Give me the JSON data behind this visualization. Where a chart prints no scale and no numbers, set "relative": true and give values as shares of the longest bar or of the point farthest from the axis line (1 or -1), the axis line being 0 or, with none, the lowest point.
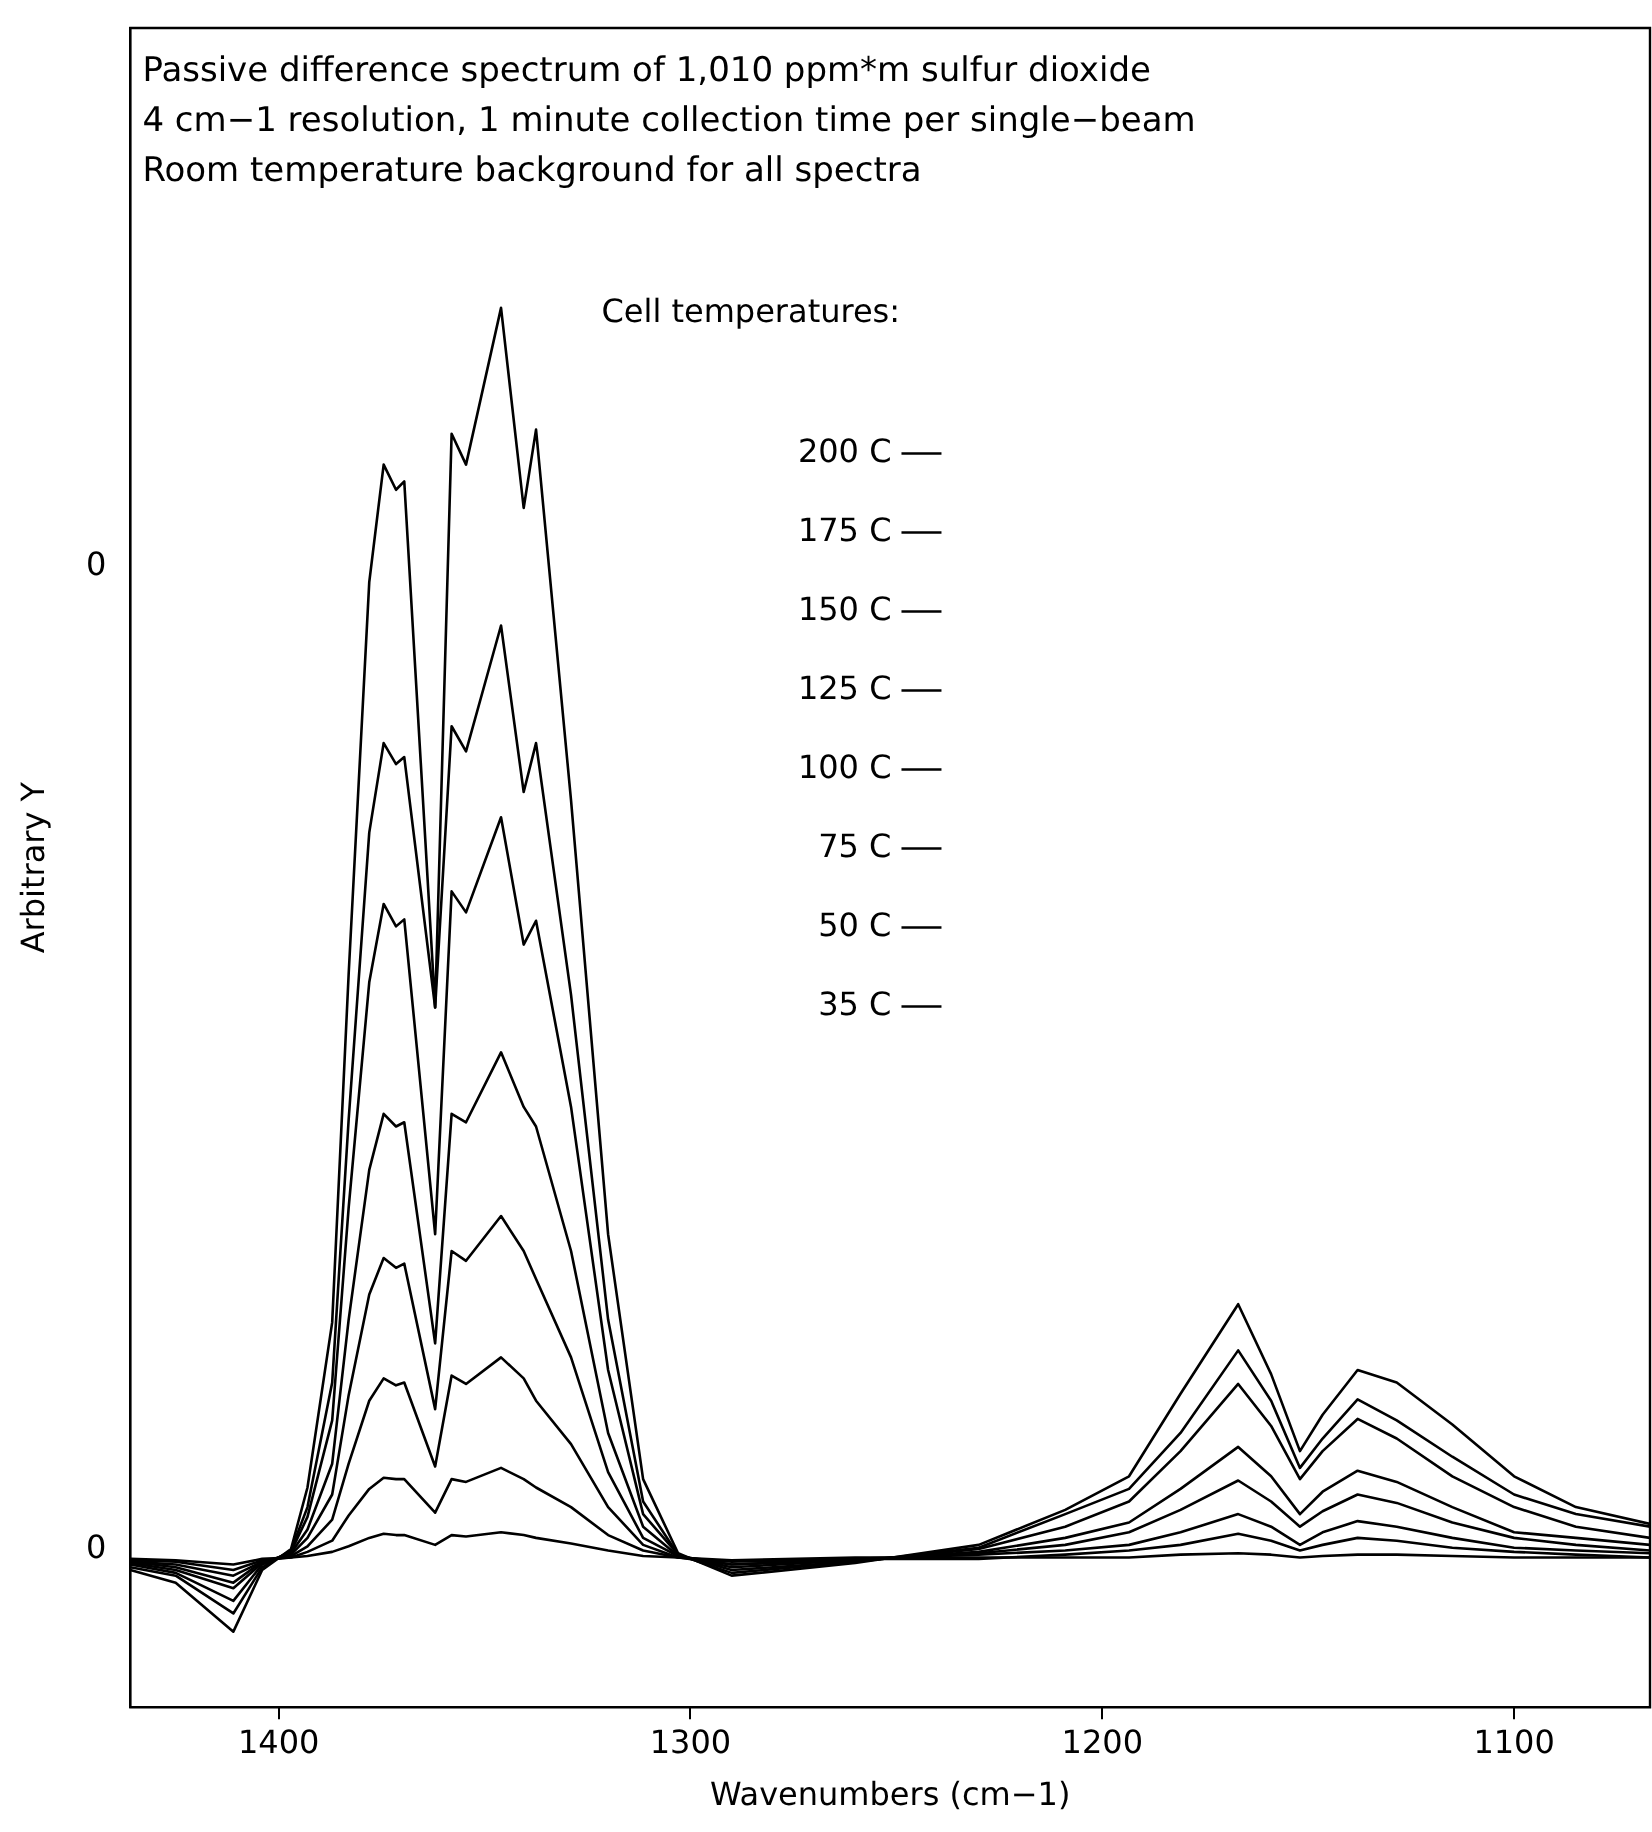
{
  "chart_data": {
    "type": "line",
    "xlabel": "Wavenumbers (cm−1)",
    "ylabel": "Arbitrary Y",
    "legend_title": "Cell temperatures:",
    "legend": "top",
    "marker": "none",
    "line_style": "solid",
    "grid": false,
    "relative": true,
    "annotations": [
      "Passive difference spectrum of 1,010 ppm*m sulfur dioxide",
      "4 cm−1 resolution, 1 minute collection time per single−beam",
      "Room temperature background for all spectra",
      "0",
      "0"
    ],
    "xlim": [
      1436,
      1067
    ],
    "xticks": [
      1400,
      1300,
      1200,
      1100
    ],
    "x": [
      1436,
      1425,
      1411,
      1404,
      1397,
      1393,
      1387,
      1383,
      1378,
      1374.5,
      1371.5,
      1369.5,
      1362,
      1358,
      1354.5,
      1346,
      1340.5,
      1337.5,
      1329,
      1320,
      1311.5,
      1303,
      1290,
      1260,
      1230,
      1209,
      1193.5,
      1181,
      1167,
      1159,
      1152,
      1146.5,
      1138,
      1128.5,
      1115,
      1100,
      1085,
      1067
    ],
    "series": [
      {
        "name": "200 C",
        "color": "#000000",
        "values": [
          0.098,
          0.089,
          0.054,
          0.098,
          0.113,
          0.157,
          0.275,
          0.524,
          0.804,
          0.888,
          0.87,
          0.876,
          0.5,
          0.91,
          0.888,
          1.0,
          0.857,
          0.913,
          0.648,
          0.338,
          0.163,
          0.11,
          0.094,
          0.103,
          0.116,
          0.141,
          0.165,
          0.224,
          0.288,
          0.238,
          0.183,
          0.209,
          0.241,
          0.232,
          0.202,
          0.165,
          0.143,
          0.131
        ]
      },
      {
        "name": "175 C",
        "color": "#000000",
        "values": [
          0.1,
          0.094,
          0.067,
          0.1,
          0.112,
          0.143,
          0.232,
          0.42,
          0.625,
          0.689,
          0.674,
          0.679,
          0.5,
          0.701,
          0.683,
          0.773,
          0.654,
          0.689,
          0.509,
          0.277,
          0.147,
          0.109,
          0.096,
          0.104,
          0.114,
          0.138,
          0.156,
          0.196,
          0.255,
          0.219,
          0.171,
          0.192,
          0.22,
          0.205,
          0.179,
          0.152,
          0.138,
          0.129
        ]
      },
      {
        "name": "150 C",
        "color": "#000000",
        "values": [
          0.102,
          0.096,
          0.076,
          0.102,
          0.111,
          0.136,
          0.205,
          0.357,
          0.518,
          0.574,
          0.558,
          0.563,
          0.338,
          0.583,
          0.568,
          0.636,
          0.545,
          0.562,
          0.429,
          0.241,
          0.138,
          0.109,
          0.098,
          0.104,
          0.113,
          0.129,
          0.147,
          0.183,
          0.231,
          0.201,
          0.163,
          0.183,
          0.206,
          0.192,
          0.165,
          0.143,
          0.129,
          0.121
        ]
      },
      {
        "name": "125 C",
        "color": "#000000",
        "values": [
          0.103,
          0.098,
          0.085,
          0.103,
          0.11,
          0.127,
          0.174,
          0.277,
          0.384,
          0.424,
          0.415,
          0.418,
          0.26,
          0.424,
          0.418,
          0.468,
          0.429,
          0.415,
          0.326,
          0.196,
          0.129,
          0.108,
          0.1,
          0.105,
          0.111,
          0.121,
          0.132,
          0.156,
          0.186,
          0.165,
          0.138,
          0.154,
          0.169,
          0.161,
          0.143,
          0.125,
          0.121,
          0.116
        ]
      },
      {
        "name": "100 C",
        "color": "#000000",
        "values": [
          0.104,
          0.1,
          0.089,
          0.104,
          0.109,
          0.121,
          0.152,
          0.223,
          0.295,
          0.321,
          0.314,
          0.317,
          0.213,
          0.326,
          0.319,
          0.351,
          0.326,
          0.306,
          0.25,
          0.168,
          0.121,
          0.108,
          0.102,
          0.105,
          0.11,
          0.116,
          0.125,
          0.141,
          0.162,
          0.147,
          0.129,
          0.14,
          0.152,
          0.146,
          0.132,
          0.121,
          0.116,
          0.112
        ]
      },
      {
        "name": "75 C",
        "color": "#000000",
        "values": [
          0.104,
          0.102,
          0.094,
          0.104,
          0.108,
          0.115,
          0.134,
          0.174,
          0.219,
          0.235,
          0.23,
          0.232,
          0.172,
          0.237,
          0.231,
          0.25,
          0.235,
          0.219,
          0.188,
          0.143,
          0.116,
          0.107,
          0.102,
          0.106,
          0.109,
          0.112,
          0.116,
          0.125,
          0.138,
          0.129,
          0.116,
          0.125,
          0.133,
          0.129,
          0.121,
          0.114,
          0.112,
          0.11
        ]
      },
      {
        "name": "50 C",
        "color": "#000000",
        "values": [
          0.105,
          0.104,
          0.098,
          0.105,
          0.107,
          0.111,
          0.119,
          0.137,
          0.156,
          0.164,
          0.163,
          0.163,
          0.139,
          0.163,
          0.161,
          0.171,
          0.163,
          0.157,
          0.143,
          0.123,
          0.112,
          0.107,
          0.104,
          0.106,
          0.106,
          0.109,
          0.112,
          0.116,
          0.124,
          0.119,
          0.112,
          0.116,
          0.121,
          0.119,
          0.114,
          0.111,
          0.109,
          0.107
        ]
      },
      {
        "name": "35 C",
        "color": "#000000",
        "values": [
          0.106,
          0.105,
          0.102,
          0.106,
          0.107,
          0.108,
          0.111,
          0.115,
          0.121,
          0.124,
          0.123,
          0.123,
          0.116,
          0.123,
          0.122,
          0.125,
          0.123,
          0.121,
          0.117,
          0.112,
          0.108,
          0.107,
          0.105,
          0.107,
          0.107,
          0.107,
          0.107,
          0.109,
          0.11,
          0.109,
          0.107,
          0.108,
          0.109,
          0.109,
          0.108,
          0.107,
          0.107,
          0.107
        ]
      }
    ]
  }
}
